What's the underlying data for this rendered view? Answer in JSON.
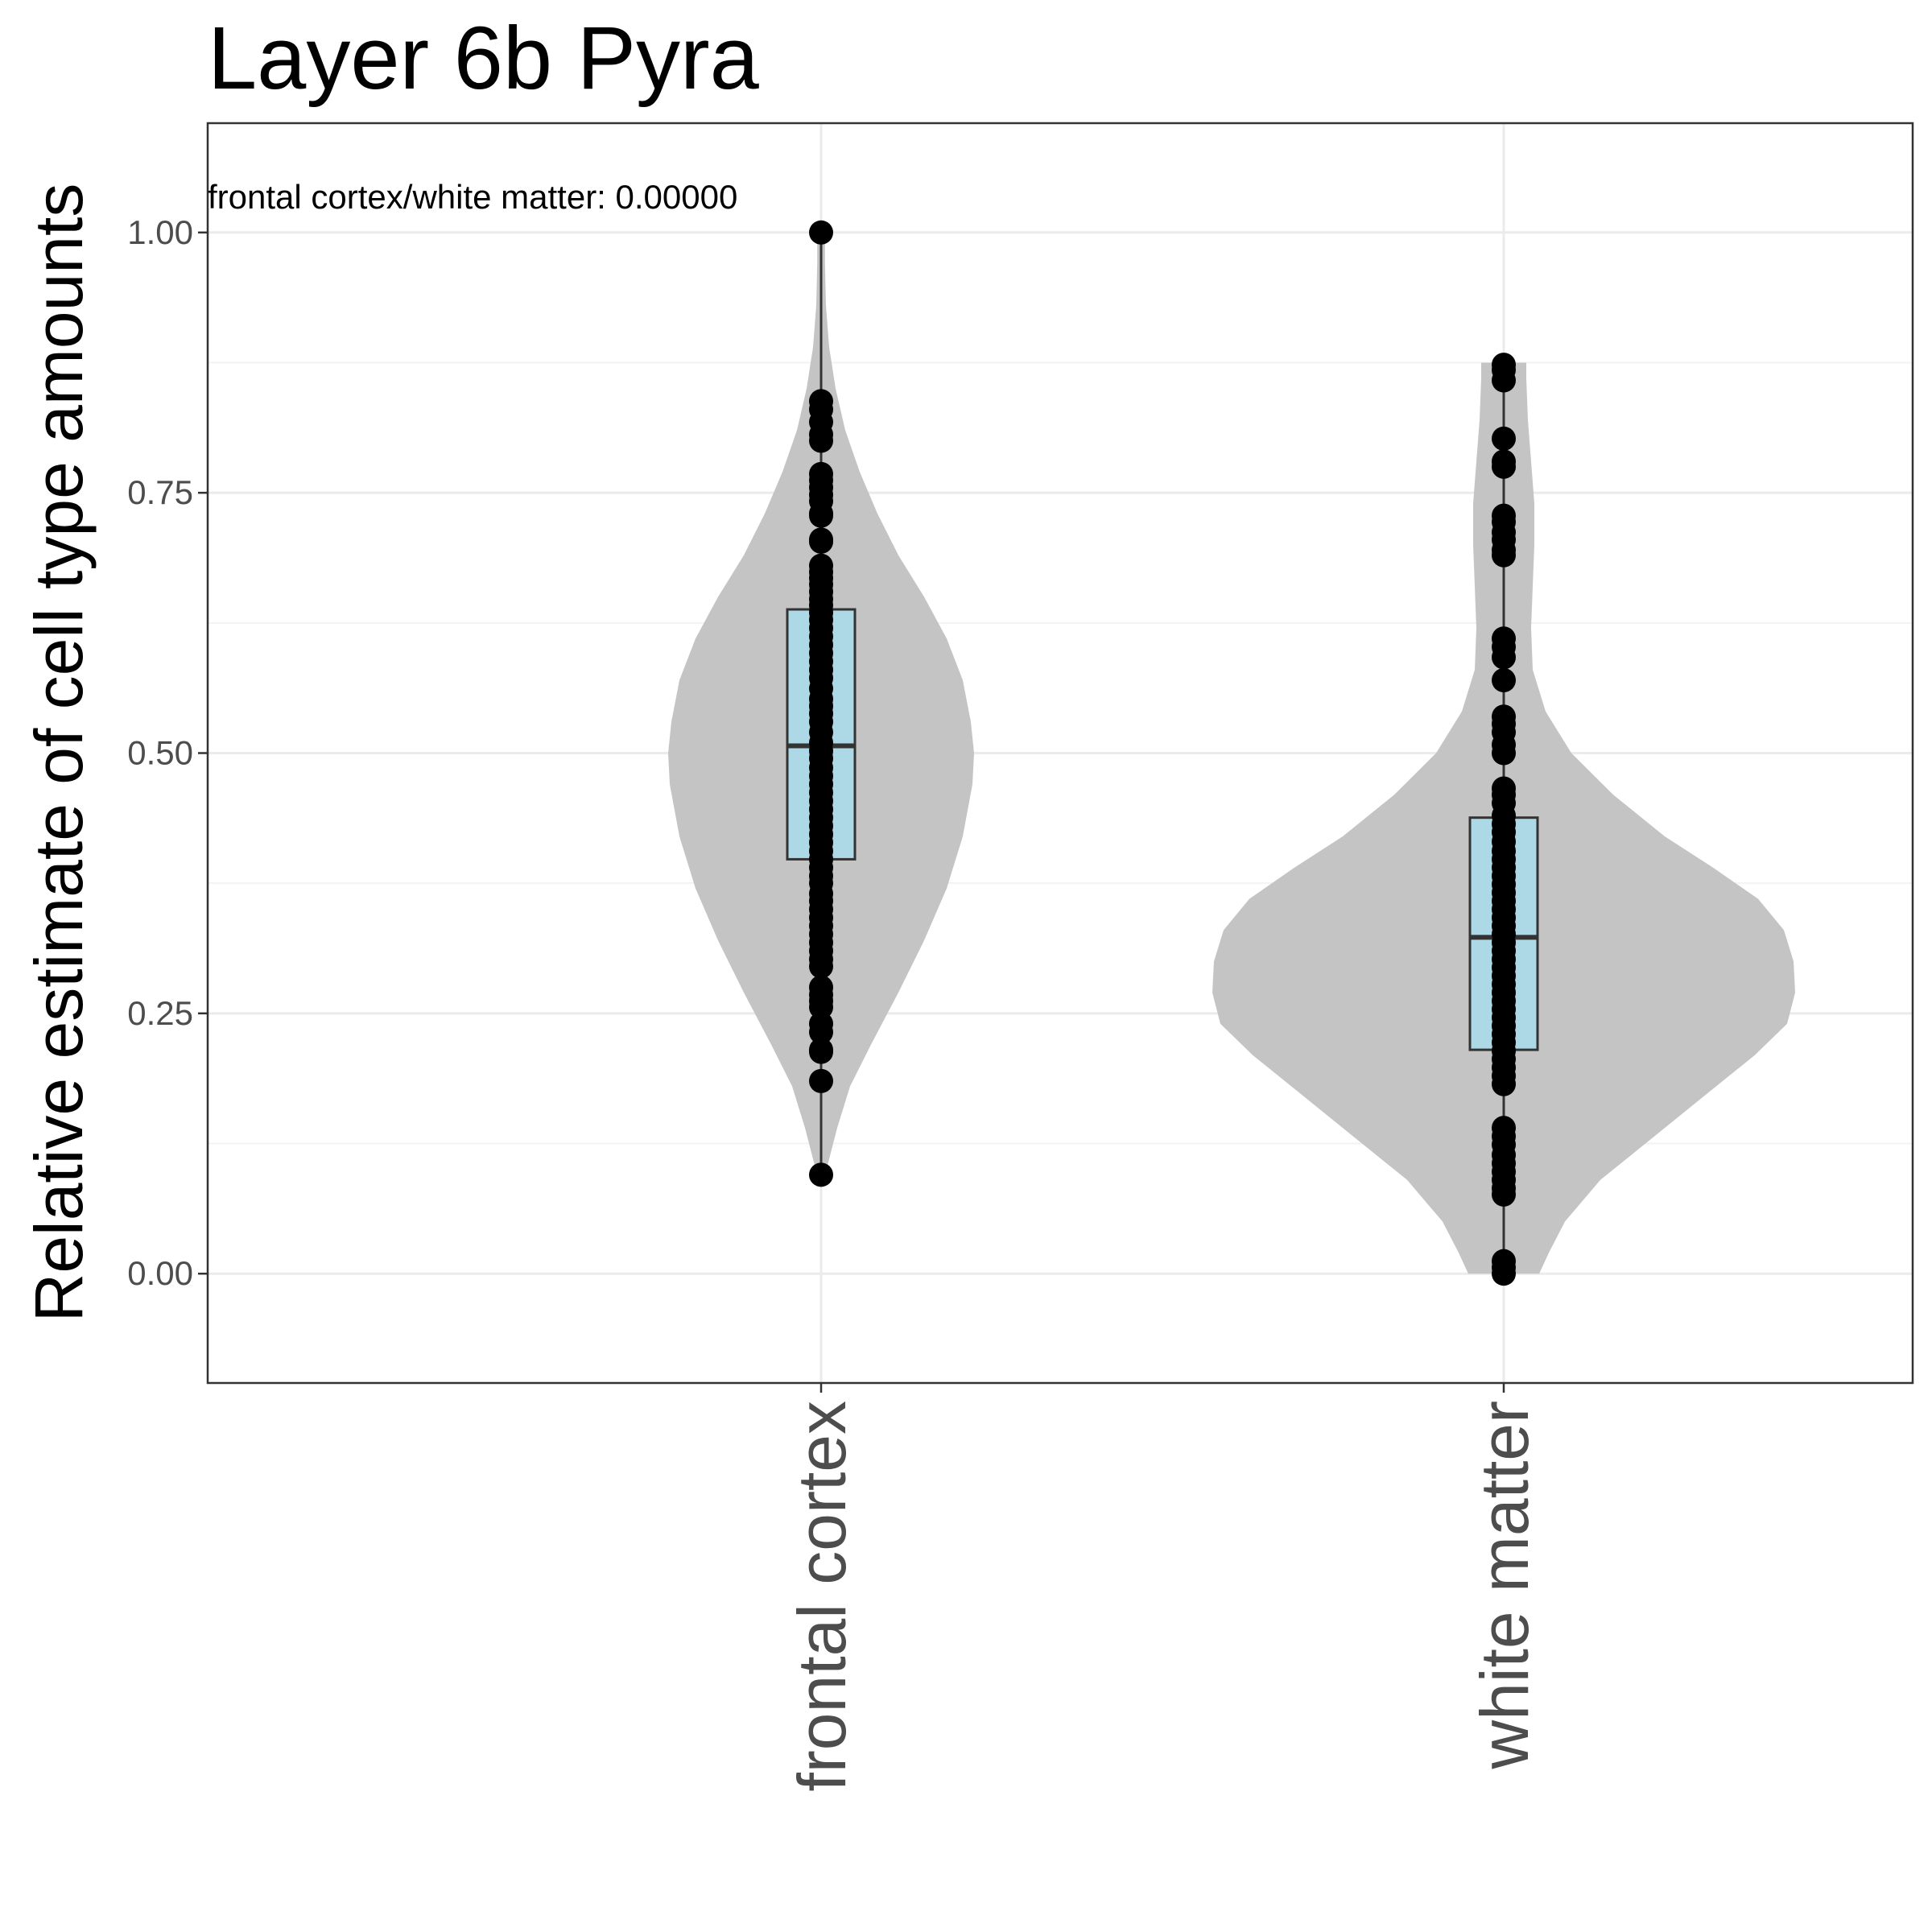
{
  "chart_data": {
    "type": "violin",
    "title": "Layer 6b Pyra",
    "ylabel": "Relative estimate of cell type amounts",
    "xlabel": "",
    "ylim": [
      -0.105,
      1.105
    ],
    "yticks": [
      0.0,
      0.25,
      0.5,
      0.75,
      1.0
    ],
    "ytick_labels": [
      "0.00",
      "0.25",
      "0.50",
      "0.75",
      "1.00"
    ],
    "grid": true,
    "annotation": "frontal cortex/white matter: 0.00000",
    "categories": [
      "frontal cortex",
      "white matter"
    ],
    "groups": [
      {
        "name": "frontal cortex",
        "violin_range": [
          0.095,
          1.0
        ],
        "violin_half_widths": [
          [
            0.095,
            0.012
          ],
          [
            0.11,
            0.025
          ],
          [
            0.14,
            0.05
          ],
          [
            0.18,
            0.09
          ],
          [
            0.22,
            0.155
          ],
          [
            0.27,
            0.24
          ],
          [
            0.32,
            0.32
          ],
          [
            0.37,
            0.39
          ],
          [
            0.42,
            0.44
          ],
          [
            0.47,
            0.47
          ],
          [
            0.5,
            0.475
          ],
          [
            0.53,
            0.465
          ],
          [
            0.57,
            0.44
          ],
          [
            0.61,
            0.39
          ],
          [
            0.65,
            0.32
          ],
          [
            0.69,
            0.24
          ],
          [
            0.73,
            0.175
          ],
          [
            0.77,
            0.12
          ],
          [
            0.81,
            0.075
          ],
          [
            0.85,
            0.045
          ],
          [
            0.89,
            0.025
          ],
          [
            0.93,
            0.015
          ],
          [
            0.97,
            0.012
          ],
          [
            1.0,
            0.012
          ]
        ],
        "box": {
          "q1": 0.398,
          "median": 0.507,
          "q3": 0.638,
          "whisker_low": 0.095,
          "whisker_high": 1.0
        },
        "points": [
          1.0,
          0.838,
          0.83,
          0.818,
          0.806,
          0.8,
          0.768,
          0.762,
          0.755,
          0.748,
          0.742,
          0.73,
          0.728,
          0.705,
          0.703,
          0.68,
          0.674,
          0.668,
          0.662,
          0.655,
          0.648,
          0.642,
          0.635,
          0.628,
          0.62,
          0.612,
          0.604,
          0.596,
          0.588,
          0.58,
          0.572,
          0.562,
          0.552,
          0.545,
          0.538,
          0.53,
          0.52,
          0.51,
          0.502,
          0.495,
          0.486,
          0.478,
          0.47,
          0.462,
          0.454,
          0.446,
          0.438,
          0.43,
          0.422,
          0.414,
          0.406,
          0.398,
          0.39,
          0.382,
          0.375,
          0.365,
          0.358,
          0.35,
          0.342,
          0.334,
          0.326,
          0.318,
          0.31,
          0.302,
          0.295,
          0.275,
          0.268,
          0.262,
          0.256,
          0.24,
          0.232,
          0.215,
          0.213,
          0.185,
          0.095
        ]
      },
      {
        "name": "white matter",
        "violin_range": [
          0.0,
          0.875
        ],
        "violin_half_widths": [
          [
            0.0,
            0.11
          ],
          [
            0.02,
            0.14
          ],
          [
            0.05,
            0.19
          ],
          [
            0.09,
            0.3
          ],
          [
            0.13,
            0.46
          ],
          [
            0.17,
            0.62
          ],
          [
            0.21,
            0.78
          ],
          [
            0.24,
            0.88
          ],
          [
            0.27,
            0.905
          ],
          [
            0.3,
            0.9
          ],
          [
            0.33,
            0.87
          ],
          [
            0.36,
            0.79
          ],
          [
            0.39,
            0.65
          ],
          [
            0.42,
            0.5
          ],
          [
            0.46,
            0.34
          ],
          [
            0.5,
            0.21
          ],
          [
            0.54,
            0.13
          ],
          [
            0.58,
            0.09
          ],
          [
            0.62,
            0.085
          ],
          [
            0.66,
            0.09
          ],
          [
            0.7,
            0.095
          ],
          [
            0.74,
            0.095
          ],
          [
            0.78,
            0.085
          ],
          [
            0.82,
            0.075
          ],
          [
            0.86,
            0.07
          ],
          [
            0.875,
            0.07
          ]
        ],
        "box": {
          "q1": 0.215,
          "median": 0.323,
          "q3": 0.438,
          "whisker_low": 0.0,
          "whisker_high": 0.873
        },
        "points": [
          0.873,
          0.868,
          0.858,
          0.802,
          0.78,
          0.775,
          0.728,
          0.722,
          0.712,
          0.705,
          0.695,
          0.69,
          0.61,
          0.602,
          0.592,
          0.57,
          0.535,
          0.528,
          0.52,
          0.508,
          0.5,
          0.466,
          0.46,
          0.452,
          0.44,
          0.432,
          0.424,
          0.415,
          0.406,
          0.398,
          0.39,
          0.382,
          0.374,
          0.366,
          0.358,
          0.35,
          0.342,
          0.334,
          0.326,
          0.318,
          0.31,
          0.302,
          0.294,
          0.286,
          0.278,
          0.27,
          0.262,
          0.254,
          0.246,
          0.238,
          0.23,
          0.222,
          0.214,
          0.206,
          0.198,
          0.19,
          0.182,
          0.14,
          0.132,
          0.124,
          0.114,
          0.106,
          0.098,
          0.09,
          0.082,
          0.076,
          0.012,
          0.006,
          0.0
        ]
      }
    ],
    "colors": {
      "violin": "#c4c4c4",
      "box_fill": "#add8e6",
      "box_stroke": "#333333",
      "points": "#000000",
      "grid_major": "#ebebeb",
      "grid_minor": "#f3f3f3",
      "panel_border": "#333333"
    }
  }
}
